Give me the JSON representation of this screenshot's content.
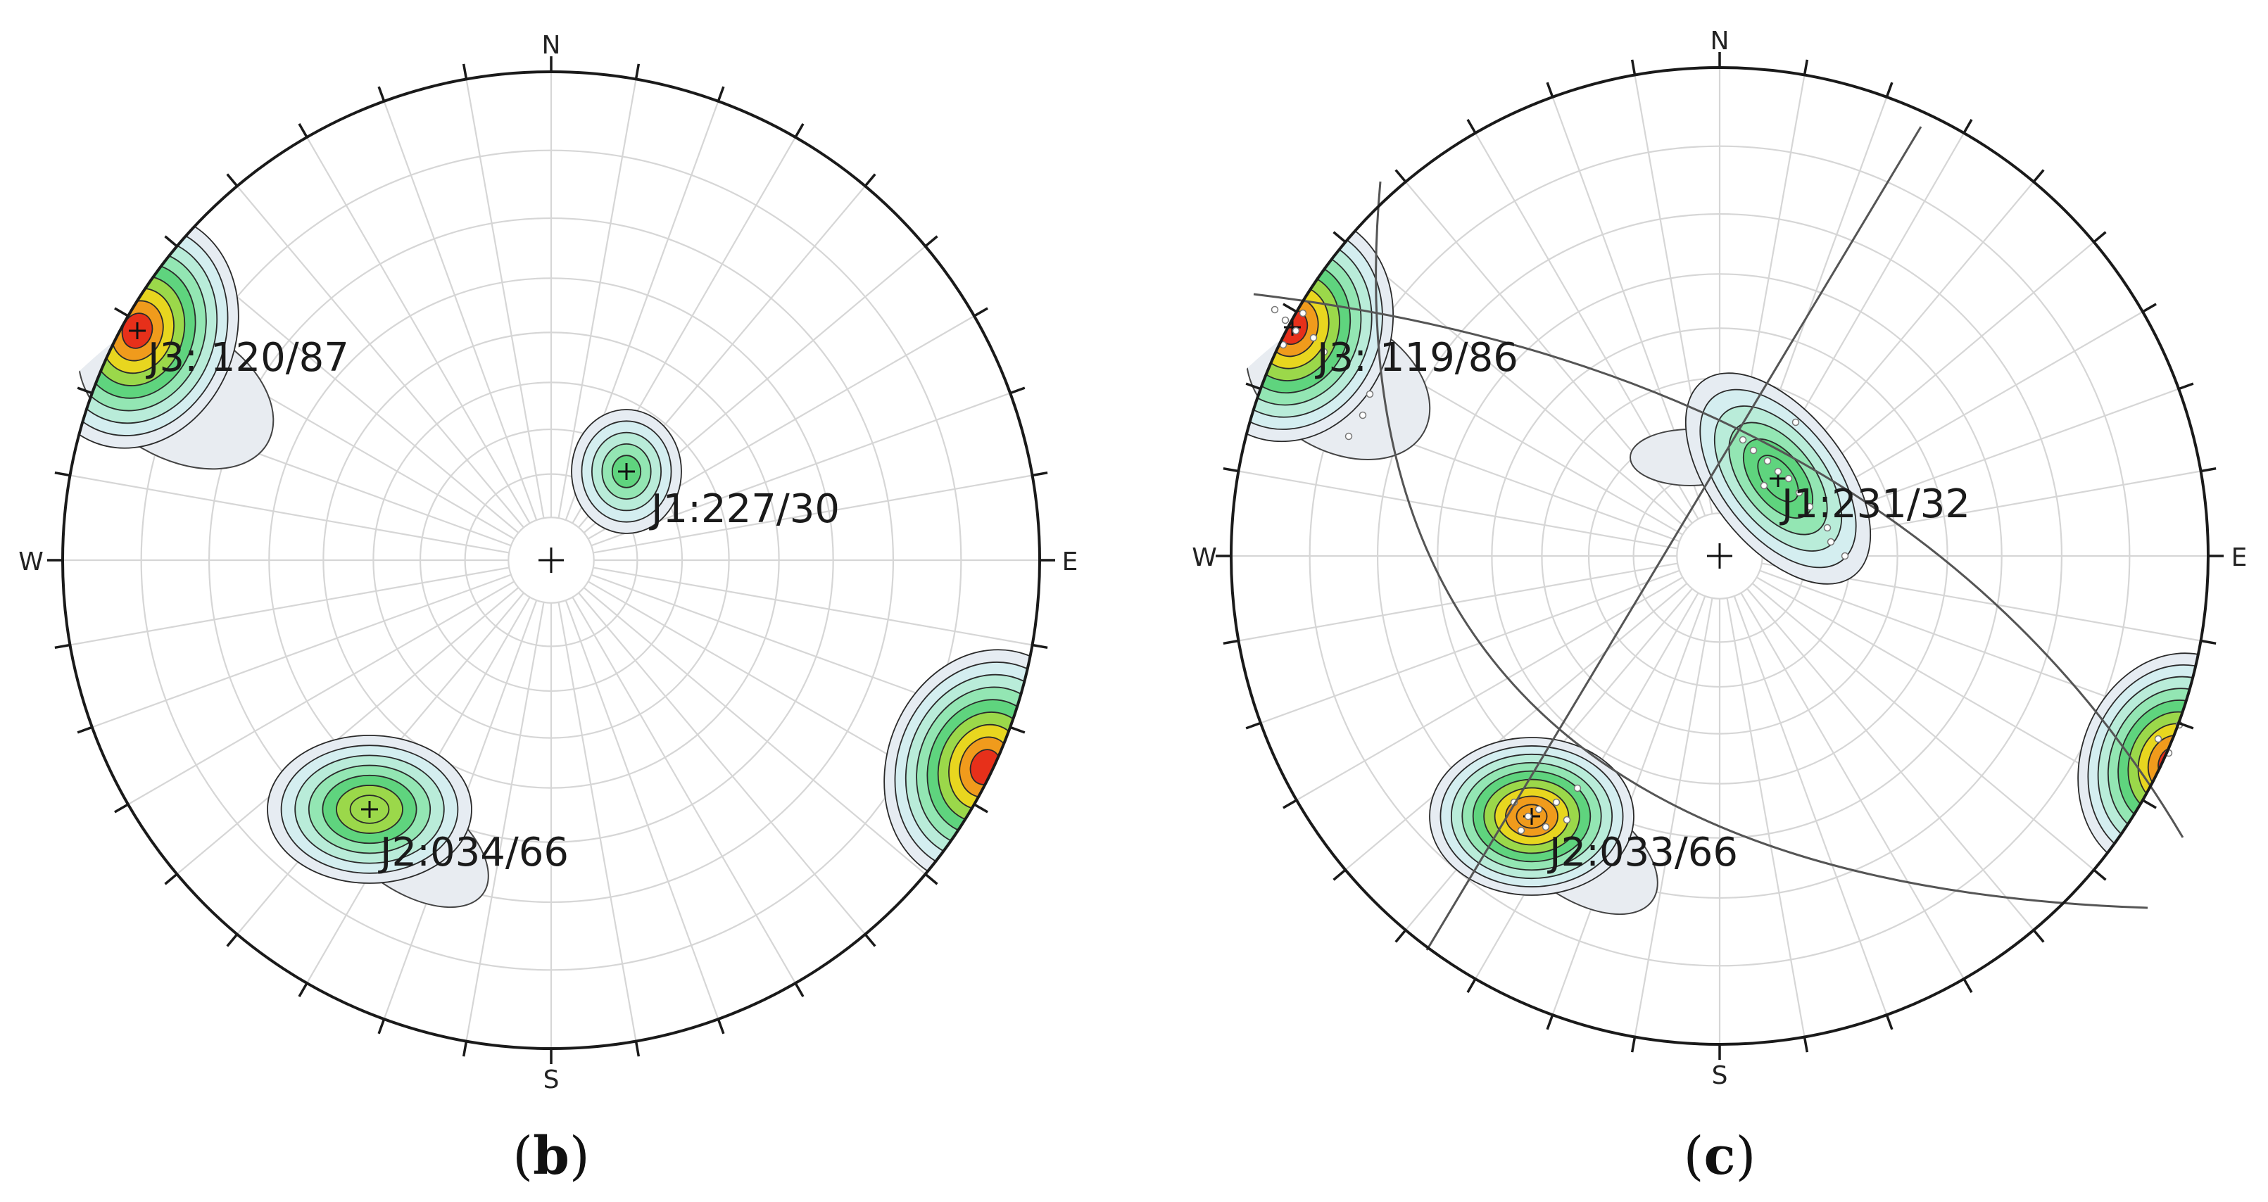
{
  "panels": [
    {
      "caption": "(b)",
      "directions": {
        "N": "N",
        "S": "S",
        "E": "E",
        "W": "W"
      },
      "sets": [
        {
          "id": "J3",
          "label": "J3: 120/87",
          "trend": 120,
          "plunge": 87
        },
        {
          "id": "J1",
          "label": "J1:227/30",
          "trend": 227,
          "plunge": 30
        },
        {
          "id": "J2",
          "label": "J2:034/66",
          "trend": 34,
          "plunge": 66
        }
      ],
      "great_circles": false
    },
    {
      "caption": "(c)",
      "directions": {
        "N": "N",
        "S": "S",
        "E": "E",
        "W": "W"
      },
      "sets": [
        {
          "id": "J3",
          "label": "J3: 119/86",
          "trend": 119,
          "plunge": 86
        },
        {
          "id": "J1",
          "label": "J1:231/32",
          "trend": 231,
          "plunge": 32
        },
        {
          "id": "J2",
          "label": "J2:033/66",
          "trend": 33,
          "plunge": 66
        }
      ],
      "great_circles": true
    }
  ],
  "colors": {
    "contour_levels": [
      "#e6ecf2",
      "#d4eef0",
      "#b9ecd9",
      "#93e6b3",
      "#5fd47e",
      "#9bd84a",
      "#e8d61f",
      "#f09b1c",
      "#e7301a"
    ],
    "outline": "#1a1a1a",
    "grid": "#d6d6d6"
  }
}
